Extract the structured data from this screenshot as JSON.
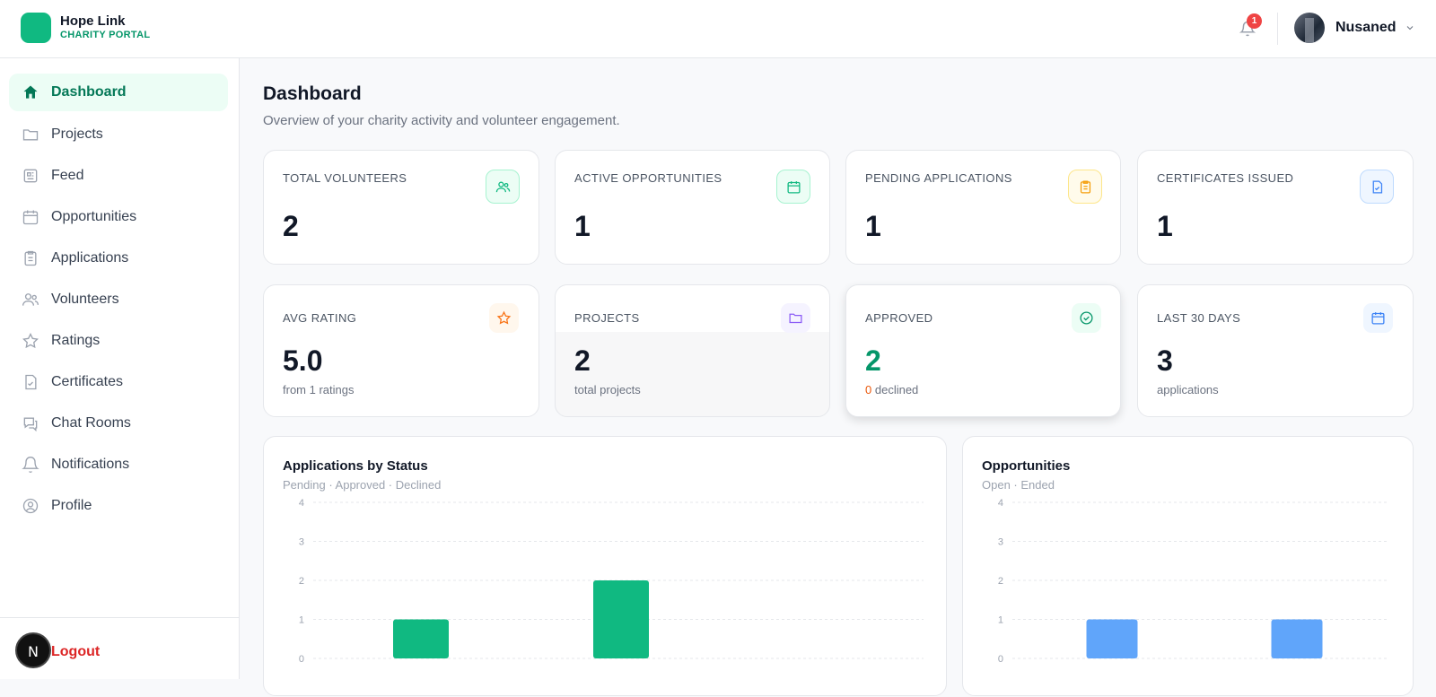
{
  "brand": {
    "name": "Hope Link",
    "sub": "CHARITY PORTAL",
    "color": "#10b981"
  },
  "header": {
    "notifications_count": "1",
    "user_name": "Nusaned"
  },
  "sidebar": {
    "items": [
      {
        "label": "Dashboard",
        "icon": "home-icon",
        "active": true
      },
      {
        "label": "Projects",
        "icon": "folder-icon"
      },
      {
        "label": "Feed",
        "icon": "newspaper-icon"
      },
      {
        "label": "Opportunities",
        "icon": "calendar-icon"
      },
      {
        "label": "Applications",
        "icon": "clipboard-icon"
      },
      {
        "label": "Volunteers",
        "icon": "users-icon"
      },
      {
        "label": "Ratings",
        "icon": "star-icon"
      },
      {
        "label": "Certificates",
        "icon": "file-check-icon"
      },
      {
        "label": "Chat Rooms",
        "icon": "chat-icon"
      },
      {
        "label": "Notifications",
        "icon": "bell-icon"
      },
      {
        "label": "Profile",
        "icon": "user-circle-icon"
      }
    ],
    "logout": "Logout",
    "dev_badge": "N"
  },
  "page": {
    "title": "Dashboard",
    "subtitle": "Overview of your charity activity and volunteer engagement."
  },
  "stats_row1": [
    {
      "label": "TOTAL VOLUNTEERS",
      "value": "2",
      "icon": "users-icon",
      "accent": "#10b981"
    },
    {
      "label": "ACTIVE OPPORTUNITIES",
      "value": "1",
      "icon": "calendar-icon",
      "accent": "#10b981"
    },
    {
      "label": "PENDING APPLICATIONS",
      "value": "1",
      "icon": "clipboard-icon",
      "accent": "#f59e0b"
    },
    {
      "label": "CERTIFICATES ISSUED",
      "value": "1",
      "icon": "file-check-icon",
      "accent": "#3b82f6"
    }
  ],
  "stats_row2": [
    {
      "label": "AVG RATING",
      "value": "5.0",
      "note": "from 1 ratings",
      "icon": "star-icon",
      "accent": "#f97316"
    },
    {
      "label": "PROJECTS",
      "value": "2",
      "note": "total projects",
      "icon": "folder-icon",
      "accent": "#8b5cf6"
    },
    {
      "label": "APPROVED",
      "value": "2",
      "note_count": "0",
      "note": "declined",
      "icon": "check-circle-icon",
      "accent": "#059669"
    },
    {
      "label": "LAST 30 DAYS",
      "value": "3",
      "note": "applications",
      "icon": "calendar-icon",
      "accent": "#3b82f6"
    }
  ],
  "chart_data": [
    {
      "type": "bar",
      "title": "Applications by Status",
      "subtitle": "Pending · Approved · Declined",
      "categories": [
        "Pending",
        "Approved",
        "Declined"
      ],
      "values": [
        1,
        2,
        0
      ],
      "yticks": [
        "0",
        "1",
        "2",
        "3",
        "4"
      ],
      "ylim": [
        0,
        4
      ],
      "color": "#10b981",
      "grid": true
    },
    {
      "type": "bar",
      "title": "Opportunities",
      "subtitle": "Open · Ended",
      "categories": [
        "Open",
        "Ended"
      ],
      "values": [
        1,
        1
      ],
      "yticks": [
        "0",
        "1",
        "2",
        "3",
        "4"
      ],
      "ylim": [
        0,
        4
      ],
      "color": "#60a5fa",
      "grid": true
    }
  ]
}
